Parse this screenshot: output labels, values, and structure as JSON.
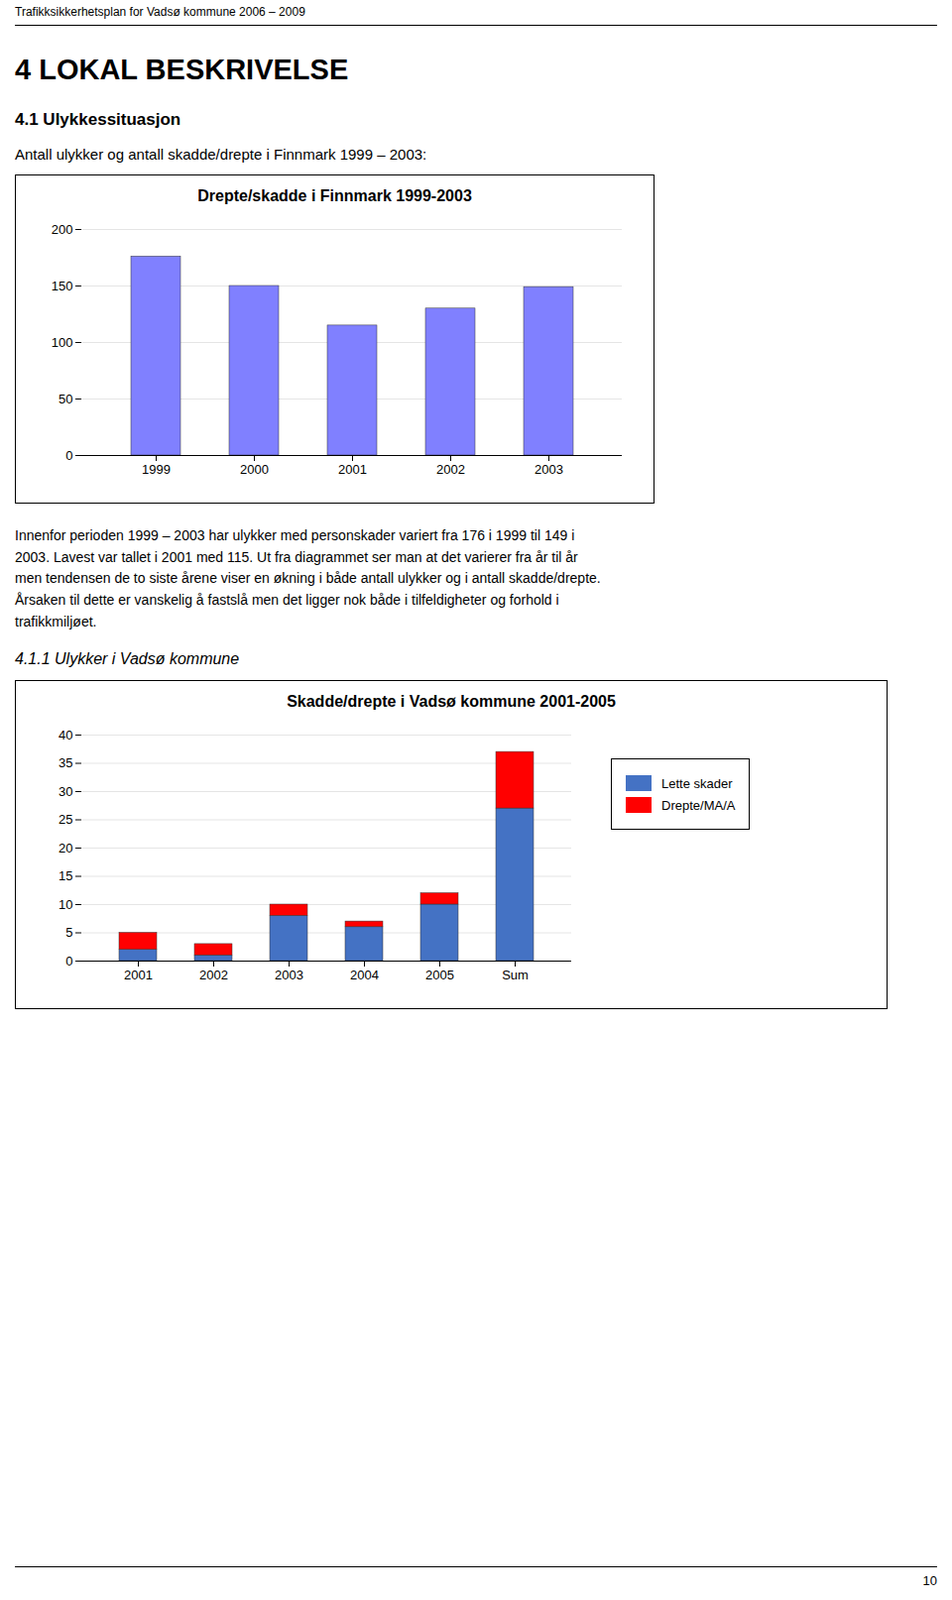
{
  "page_title": "Trafikksikkerhetsplan for Vadsø kommune 2006 – 2009",
  "heading1": "4  LOKAL BESKRIVELSE",
  "heading2": "4.1  Ulykkessituasjon",
  "paragraph1": "Antall ulykker og antall skadde/drepte i Finnmark 1999 – 2003:",
  "paragraph2": [
    "Innenfor perioden 1999 – 2003 har ulykker med personskader variert fra 176 i 1999 til 149 i",
    "2003. Lavest var tallet i 2001 med 115. Ut fra diagrammet ser man at det varierer fra år til år",
    "men tendensen de to siste årene viser en økning i både antall ulykker og i antall skadde/drepte.",
    "Årsaken til dette er vanskelig å fastslå men det ligger nok både i tilfeldigheter og forhold i",
    "trafikkmiljøet."
  ],
  "heading3": "4.1.1   Ulykker i Vadsø kommune",
  "page_number": "10",
  "chart_data": [
    {
      "type": "bar",
      "title": "Drepte/skadde i Finnmark 1999-2003",
      "categories": [
        "1999",
        "2000",
        "2001",
        "2002",
        "2003"
      ],
      "values": [
        176,
        150,
        115,
        130,
        149
      ],
      "color": "#8080FF",
      "ylim": [
        0,
        200
      ],
      "yticks": [
        0,
        50,
        100,
        150,
        200
      ],
      "grid": true
    },
    {
      "type": "bar",
      "title": "Skadde/drepte i Vadsø kommune 2001-2005",
      "categories": [
        "2001",
        "2002",
        "2003",
        "2004",
        "2005",
        "Sum"
      ],
      "series": [
        {
          "name": "Lette skader",
          "color": "#4472C4",
          "values": [
            2,
            1,
            8,
            6,
            10,
            27
          ]
        },
        {
          "name": "Drepte/MA/A",
          "color": "#FF0000",
          "values": [
            3,
            2,
            2,
            1,
            2,
            10
          ]
        }
      ],
      "stacked": true,
      "legend": "right",
      "ylim": [
        0,
        40
      ],
      "yticks": [
        0,
        5,
        10,
        15,
        20,
        25,
        30,
        35,
        40
      ],
      "grid": true
    }
  ]
}
